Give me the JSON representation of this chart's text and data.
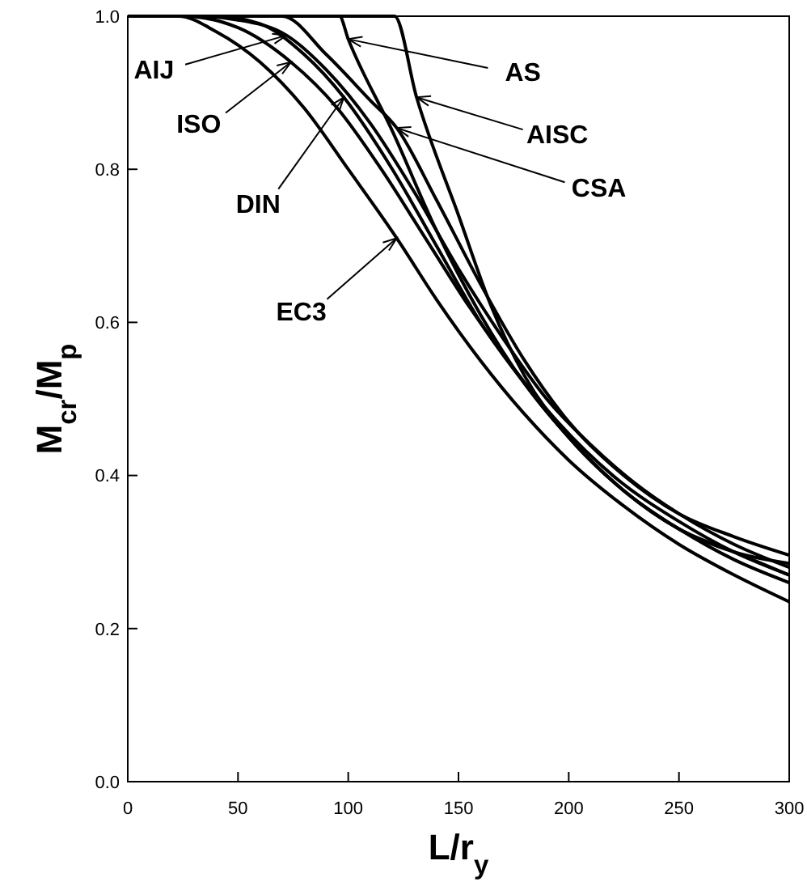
{
  "chart_data": {
    "type": "line",
    "xlabel": "L/r$_{y}$",
    "ylabel": "M$_{cr}$/M$_{p}$",
    "xlim": [
      0,
      300
    ],
    "ylim": [
      0,
      1
    ],
    "xticks": [
      0,
      50,
      100,
      150,
      200,
      250,
      300
    ],
    "yticks": [
      {
        "value": 0,
        "label": "0.0"
      },
      0.2,
      0.4,
      0.6,
      0.8,
      {
        "value": 1,
        "label": "1.0"
      }
    ],
    "grid": false,
    "marker": "none",
    "line_style": "solid",
    "series": [
      {
        "color": "#000000",
        "x": [
          0,
          30,
          50,
          72,
          90,
          110,
          130,
          150,
          170,
          190,
          210,
          230,
          250,
          275,
          300
        ],
        "values": [
          1,
          1,
          0.995,
          0.975,
          0.93,
          0.86,
          0.77,
          0.67,
          0.58,
          0.5,
          0.44,
          0.39,
          0.35,
          0.31,
          0.28
        ]
      },
      {
        "color": "#000000",
        "x": [
          0,
          25,
          50,
          74,
          95,
          115,
          135,
          155,
          175,
          195,
          220,
          250,
          275,
          300
        ],
        "values": [
          1,
          1,
          0.985,
          0.94,
          0.88,
          0.8,
          0.71,
          0.62,
          0.54,
          0.47,
          0.4,
          0.34,
          0.3,
          0.27
        ]
      },
      {
        "color": "#000000",
        "x": [
          0,
          40,
          60,
          80,
          98,
          120,
          140,
          160,
          180,
          200,
          225,
          250,
          275,
          300
        ],
        "values": [
          1,
          1,
          0.99,
          0.95,
          0.894,
          0.8,
          0.7,
          0.6,
          0.52,
          0.45,
          0.38,
          0.33,
          0.29,
          0.26
        ]
      },
      {
        "color": "#000000",
        "x": [
          0,
          23,
          40,
          60,
          80,
          100,
          122,
          140,
          160,
          180,
          200,
          225,
          250,
          275,
          300
        ],
        "values": [
          1,
          1,
          0.98,
          0.94,
          0.88,
          0.8,
          0.71,
          0.63,
          0.55,
          0.48,
          0.42,
          0.36,
          0.31,
          0.27,
          0.235
        ]
      },
      {
        "color": "#000000",
        "x": [
          0,
          96,
          100,
          120,
          140,
          160,
          180,
          200,
          225,
          250,
          275,
          300
        ],
        "values": [
          1,
          1,
          0.97,
          0.85,
          0.72,
          0.61,
          0.52,
          0.45,
          0.38,
          0.33,
          0.3,
          0.27
        ]
      },
      {
        "color": "#000000",
        "x": [
          0,
          121,
          131,
          150,
          165,
          180,
          200,
          225,
          250,
          275,
          300
        ],
        "values": [
          1,
          1,
          0.894,
          0.74,
          0.62,
          0.53,
          0.45,
          0.38,
          0.33,
          0.3,
          0.285
        ]
      },
      {
        "color": "#000000",
        "x": [
          0,
          70,
          90,
          110,
          122,
          140,
          160,
          180,
          200,
          225,
          250,
          275,
          300
        ],
        "values": [
          1,
          1,
          0.95,
          0.89,
          0.854,
          0.76,
          0.65,
          0.55,
          0.47,
          0.4,
          0.35,
          0.32,
          0.296
        ]
      }
    ],
    "annotations": [
      {
        "text": "AIJ",
        "x": 72,
        "y": 0.975
      },
      {
        "text": "ISO",
        "x": 74,
        "y": 0.94
      },
      {
        "text": "DIN",
        "x": 98,
        "y": 0.894
      },
      {
        "text": "EC3",
        "x": 122,
        "y": 0.71
      },
      {
        "text": "AS",
        "x": 100,
        "y": 0.97
      },
      {
        "text": "AISC",
        "x": 131,
        "y": 0.894
      },
      {
        "text": "CSA",
        "x": 122,
        "y": 0.854
      }
    ]
  }
}
